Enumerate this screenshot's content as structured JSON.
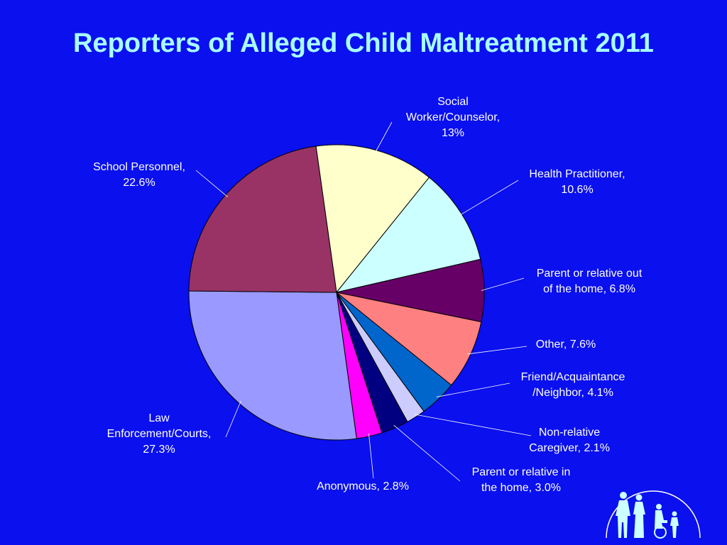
{
  "title": "Reporters of Alleged Child Maltreatment 2011",
  "chart_data": {
    "type": "pie",
    "title": "Reporters of Alleged Child Maltreatment 2011",
    "start_angle_deg": -8,
    "direction": "clockwise",
    "slices": [
      {
        "label": [
          "Social",
          "Worker/Counselor,",
          "13%"
        ],
        "value": 13.0,
        "color": "#ffffcc"
      },
      {
        "label": [
          "Health Practitioner,",
          "10.6%"
        ],
        "value": 10.6,
        "color": "#ccffff"
      },
      {
        "label": [
          "Parent or relative out",
          "of the home, 6.8%"
        ],
        "value": 6.8,
        "color": "#660066"
      },
      {
        "label": [
          "Other, 7.6%"
        ],
        "value": 7.6,
        "color": "#ff8080"
      },
      {
        "label": [
          "Friend/Acquaintance",
          "/Neighbor, 4.1%"
        ],
        "value": 4.1,
        "color": "#0066cc"
      },
      {
        "label": [
          "Non-relative",
          "Caregiver, 2.1%"
        ],
        "value": 2.1,
        "color": "#ccccff"
      },
      {
        "label": [
          "Parent or relative in",
          "the home, 3.0%"
        ],
        "value": 3.0,
        "color": "#000080"
      },
      {
        "label": [
          "Anonymous, 2.8%"
        ],
        "value": 2.8,
        "color": "#ff00ff"
      },
      {
        "label": [
          "Law",
          "Enforcement/Courts,",
          "27.3%"
        ],
        "value": 27.3,
        "color": "#9999ff"
      },
      {
        "label": [
          "School Personnel,",
          "22.6%"
        ],
        "value": 22.6,
        "color": "#993366"
      }
    ]
  },
  "logo": {
    "icon": "family-silhouette-icon"
  }
}
